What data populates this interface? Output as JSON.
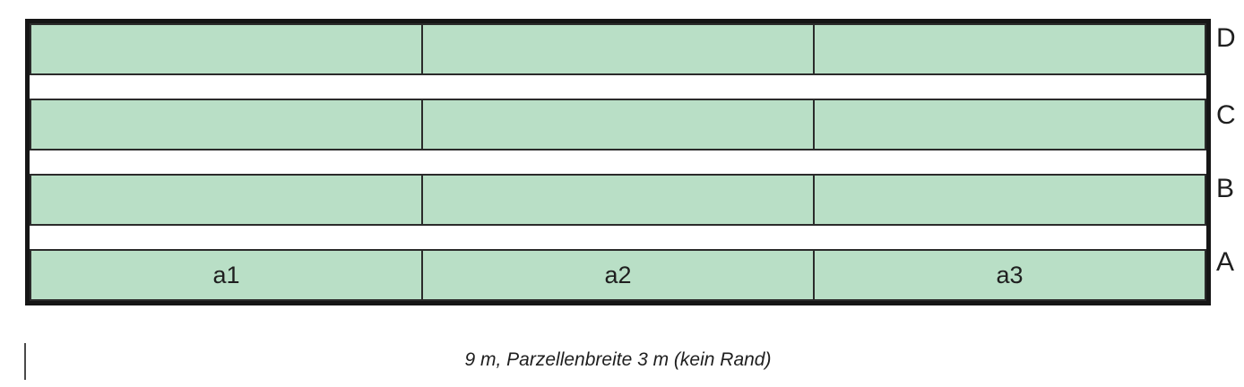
{
  "diagram": {
    "rows": [
      {
        "label": "D",
        "cells": [
          "",
          "",
          ""
        ]
      },
      {
        "label": "C",
        "cells": [
          "",
          "",
          ""
        ]
      },
      {
        "label": "B",
        "cells": [
          "",
          "",
          ""
        ]
      },
      {
        "label": "A",
        "cells": [
          "a1",
          "a2",
          "a3"
        ]
      }
    ],
    "colors": {
      "plot_fill": "#b9dfc6",
      "line": "#2b2b2b",
      "outer_border": "#161616",
      "text": "#1f1f1f"
    }
  },
  "caption": "9 m, Parzellenbreite 3 m (kein Rand)"
}
